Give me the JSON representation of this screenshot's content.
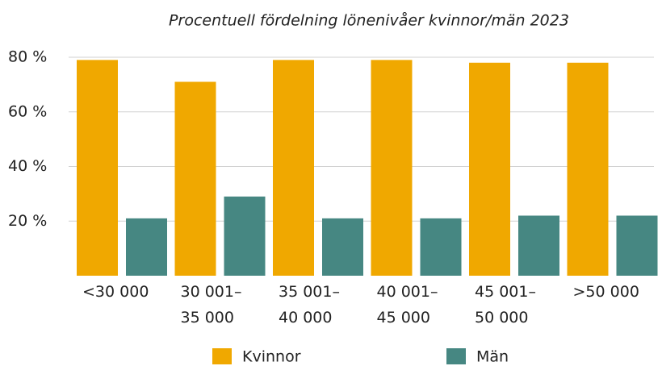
{
  "chart_data": {
    "type": "bar",
    "title": "Procentuell fördelning lönenivåer kvinnor/män 2023",
    "categories": [
      "<30 000",
      "30 001– 35 000",
      "35 001– 40 000",
      "40 001– 45 000",
      "45 001– 50 000",
      ">50 000"
    ],
    "series": [
      {
        "name": "Kvinnor",
        "color": "#f0a800",
        "values": [
          79,
          71,
          79,
          79,
          78,
          78
        ]
      },
      {
        "name": "Män",
        "color": "#468782",
        "values": [
          21,
          29,
          21,
          21,
          22,
          22
        ]
      }
    ],
    "ylim": [
      0,
      80
    ],
    "yticks": [
      {
        "value": 20,
        "label": "20 %"
      },
      {
        "value": 40,
        "label": "40 %"
      },
      {
        "value": 60,
        "label": "60 %"
      },
      {
        "value": 80,
        "label": "80 %"
      }
    ],
    "grid": true
  }
}
